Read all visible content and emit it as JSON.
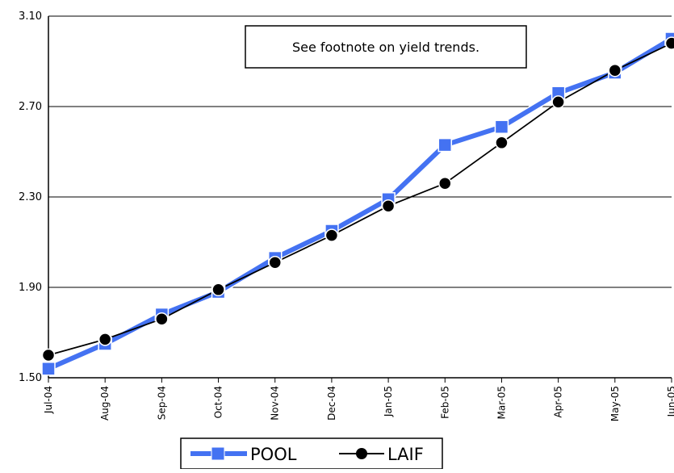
{
  "annotation": "See footnote on yield trends.",
  "colors": {
    "pool": "#4472F2",
    "laif": "#000000"
  },
  "chart_data": {
    "type": "line",
    "categories": [
      "Jul-04",
      "Aug-04",
      "Sep-04",
      "Oct-04",
      "Nov-04",
      "Dec-04",
      "Jan-05",
      "Feb-05",
      "Mar-05",
      "Apr-05",
      "May-05",
      "Jun-05"
    ],
    "series": [
      {
        "name": "POOL",
        "values": [
          1.54,
          1.65,
          1.78,
          1.88,
          2.03,
          2.15,
          2.29,
          2.53,
          2.61,
          2.76,
          2.85,
          3.0
        ],
        "marker": "square"
      },
      {
        "name": "LAIF",
        "values": [
          1.6,
          1.67,
          1.76,
          1.89,
          2.01,
          2.13,
          2.26,
          2.36,
          2.54,
          2.72,
          2.86,
          2.98
        ],
        "marker": "circle"
      }
    ],
    "ylim": [
      1.5,
      3.1
    ],
    "yticks": [
      "1.50",
      "1.90",
      "2.30",
      "2.70",
      "3.10"
    ],
    "grid": "horizontal",
    "legend": "bottom-center"
  }
}
